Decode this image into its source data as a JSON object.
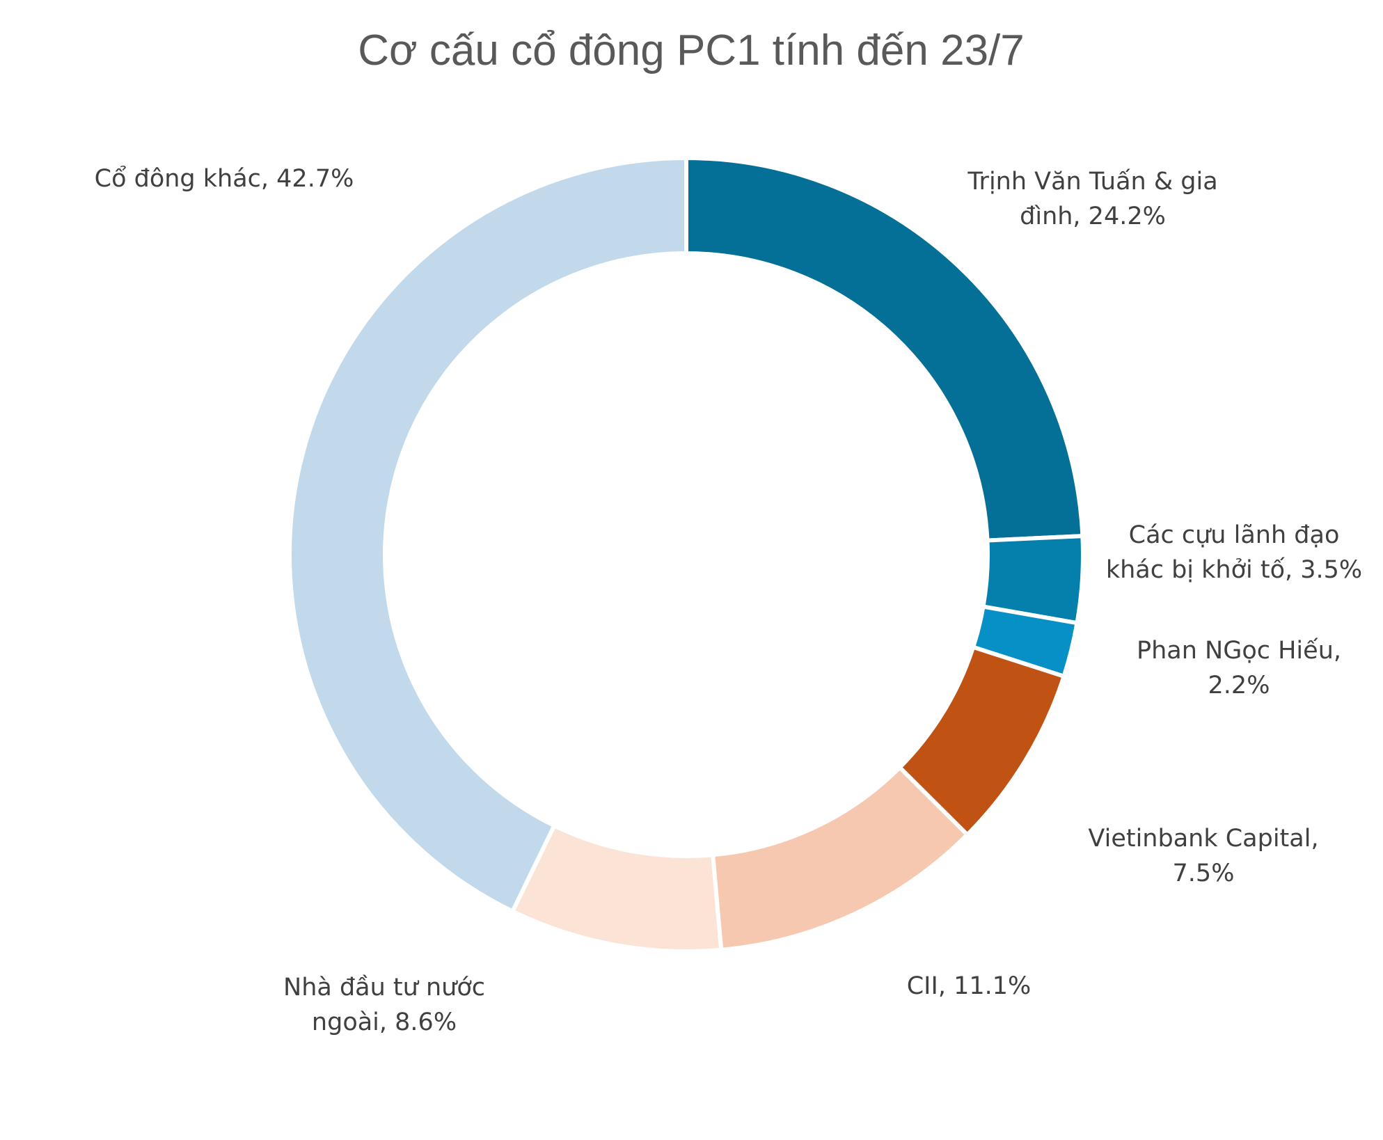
{
  "chart_data": {
    "type": "pie",
    "style": "doughnut",
    "title": "Cơ cấu cổ đông PC1 tính đến 23/7",
    "slices": [
      {
        "label_lines": [
          "Trịnh Văn Tuấn & gia",
          "đình, 24.2%"
        ],
        "name": "Trịnh Văn Tuấn & gia đình",
        "value": 24.2,
        "color": "#046f97"
      },
      {
        "label_lines": [
          "Các cựu lãnh đạo",
          "khác bị khởi tố, 3.5%"
        ],
        "name": "Các cựu lãnh đạo khác bị khởi tố",
        "value": 3.5,
        "color": "#0580ad"
      },
      {
        "label_lines": [
          "Phan NGọc Hiếu,",
          "2.2%"
        ],
        "name": "Phan NGọc Hiếu",
        "value": 2.2,
        "color": "#0790c6"
      },
      {
        "label_lines": [
          "Vietinbank Capital,",
          "7.5%"
        ],
        "name": "Vietinbank Capital",
        "value": 7.5,
        "color": "#c05213"
      },
      {
        "label_lines": [
          "CII, 11.1%"
        ],
        "name": "CII",
        "value": 11.1,
        "color": "#f6c8af"
      },
      {
        "label_lines": [
          "Nhà đầu tư nước",
          "ngoài, 8.6%"
        ],
        "name": "Nhà đầu tư nước ngoài",
        "value": 8.6,
        "color": "#fbe3d6"
      },
      {
        "label_lines": [
          "Cổ đông khác, 42.7%"
        ],
        "name": "Cổ đông khác",
        "value": 42.7,
        "color": "#c1d9eb"
      }
    ]
  }
}
